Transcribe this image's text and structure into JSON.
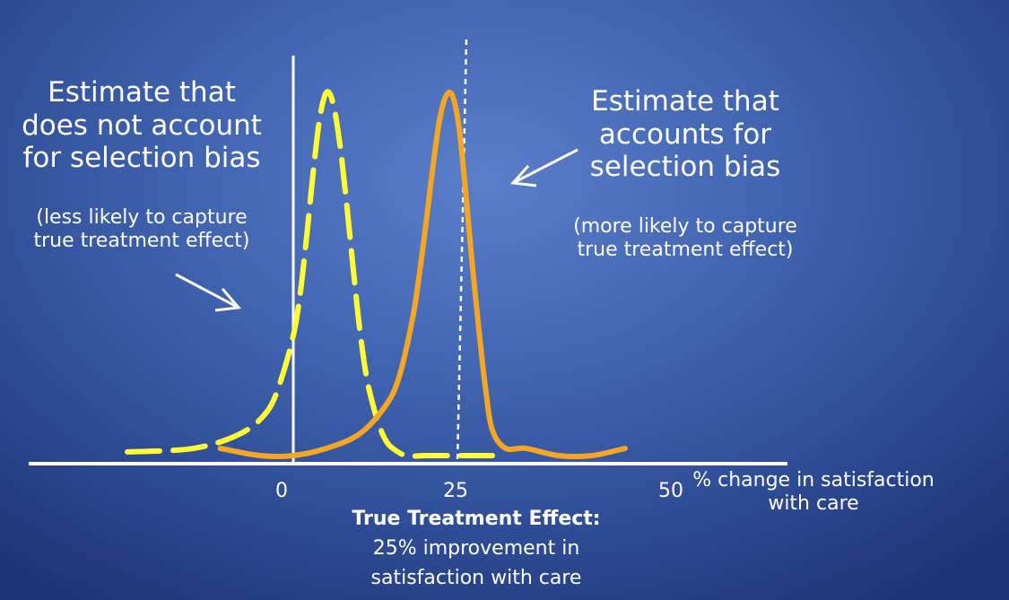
{
  "left_label": {
    "line1": "Estimate that",
    "line2": "does not account",
    "line3": "for selection bias",
    "note1": "(less likely to capture",
    "note2": "true treatment effect)"
  },
  "right_label": {
    "line1": "Estimate that",
    "line2": "accounts for",
    "line3": "selection bias",
    "note1": "(more likely to capture",
    "note2": "true treatment effect)"
  },
  "axis": {
    "ticks": [
      "0",
      "25",
      "50"
    ],
    "label_line1": "% change in satisfaction",
    "label_line2": "with care"
  },
  "true_effect": {
    "title": "True Treatment Effect:",
    "line1": "25% improvement in",
    "line2": "satisfaction with care"
  },
  "chart_data": {
    "type": "line",
    "x_ticks": [
      0,
      25,
      50
    ],
    "true_effect_x": 25,
    "series": [
      {
        "style": "dashed",
        "color": "#ffff33",
        "x": [
          -25,
          -15,
          -8,
          -4,
          -2,
          0,
          1,
          2,
          3,
          4,
          5,
          6,
          7,
          8,
          9,
          10,
          11,
          12,
          13,
          14,
          15,
          17,
          20,
          25,
          30
        ],
        "y": [
          0.01,
          0.02,
          0.06,
          0.12,
          0.2,
          0.33,
          0.44,
          0.6,
          0.78,
          0.93,
          1.0,
          0.97,
          0.86,
          0.7,
          0.52,
          0.35,
          0.22,
          0.14,
          0.08,
          0.04,
          0.02,
          0.0,
          0.0,
          0.0,
          0.0
        ]
      },
      {
        "style": "solid",
        "color": "#f5a623",
        "x": [
          -11,
          -5,
          0,
          5,
          10,
          14,
          16,
          18,
          19,
          20,
          21,
          22,
          23,
          24,
          25,
          26,
          27,
          28,
          29,
          30,
          32,
          35,
          40,
          45,
          50
        ],
        "y": [
          0.02,
          0.0,
          0.0,
          0.02,
          0.06,
          0.14,
          0.22,
          0.38,
          0.5,
          0.64,
          0.79,
          0.92,
          0.99,
          0.99,
          0.9,
          0.72,
          0.52,
          0.34,
          0.18,
          0.07,
          0.02,
          0.02,
          0.0,
          0.0,
          0.02
        ]
      }
    ]
  }
}
